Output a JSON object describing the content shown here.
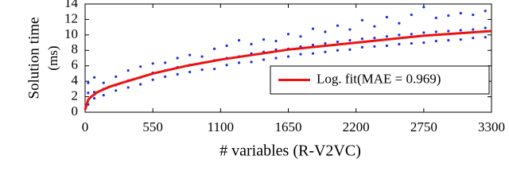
{
  "chart_data": {
    "type": "scatter",
    "xlabel": "# variables (R-V2VC)",
    "ylabel": [
      "Solution time",
      "(ms)"
    ],
    "xlim": [
      0,
      3300
    ],
    "xticks": [
      0,
      550,
      1100,
      1650,
      2200,
      2750,
      3300
    ],
    "ylim": [
      0,
      14
    ],
    "yticks": [
      0,
      2,
      4,
      6,
      8,
      10,
      12,
      14
    ],
    "grid": false,
    "legend": "lower right",
    "series": [
      {
        "type": "scatter",
        "color": "#1f2fe0",
        "x": [
          25,
          25,
          25,
          75,
          75,
          75,
          150,
          150,
          150,
          250,
          250,
          250,
          350,
          350,
          350,
          450,
          450,
          450,
          550,
          550,
          550,
          650,
          650,
          650,
          750,
          750,
          750,
          850,
          850,
          850,
          950,
          950,
          950,
          1050,
          1050,
          1050,
          1150,
          1150,
          1150,
          1250,
          1250,
          1250,
          1350,
          1350,
          1350,
          1450,
          1450,
          1450,
          1550,
          1550,
          1550,
          1650,
          1650,
          1650,
          1750,
          1750,
          1750,
          1850,
          1850,
          1850,
          1950,
          1950,
          1950,
          2050,
          2050,
          2050,
          2150,
          2150,
          2150,
          2250,
          2250,
          2250,
          2350,
          2350,
          2350,
          2450,
          2450,
          2450,
          2550,
          2550,
          2550,
          2650,
          2650,
          2650,
          2750,
          2750,
          2750,
          2850,
          2850,
          2850,
          2950,
          2950,
          2950,
          3050,
          3050,
          3050,
          3150,
          3150,
          3150,
          3250,
          3250,
          3250
        ],
        "values": [
          1.0,
          2.5,
          3.8,
          1.8,
          2.6,
          4.5,
          2.2,
          3.0,
          3.8,
          2.8,
          3.5,
          4.6,
          3.2,
          4.1,
          5.4,
          3.6,
          4.5,
          5.9,
          4.2,
          5.1,
          6.3,
          4.6,
          5.4,
          6.4,
          4.9,
          5.8,
          7.0,
          5.2,
          6.1,
          7.4,
          5.5,
          6.4,
          7.2,
          5.6,
          6.7,
          8.2,
          6.1,
          7.0,
          8.6,
          6.4,
          7.2,
          9.3,
          6.5,
          7.6,
          8.8,
          6.8,
          7.8,
          9.4,
          7.0,
          8.1,
          9.2,
          7.2,
          8.2,
          10.1,
          7.5,
          8.5,
          9.8,
          7.6,
          8.7,
          10.8,
          7.8,
          8.9,
          10.4,
          8.0,
          9.1,
          11.2,
          8.1,
          9.3,
          10.7,
          8.4,
          9.5,
          11.9,
          8.5,
          9.6,
          11.1,
          8.6,
          9.8,
          12.3,
          8.8,
          10.0,
          11.5,
          8.9,
          10.1,
          12.6,
          9.0,
          10.3,
          13.6,
          9.2,
          10.4,
          12.2,
          9.3,
          10.5,
          12.5,
          9.4,
          10.6,
          12.8,
          9.6,
          10.7,
          12.6,
          9.7,
          10.9,
          13.1
        ]
      },
      {
        "type": "line",
        "name": "Log. fit(MAE = 0.969)",
        "color": "#ee1111",
        "x": [
          0,
          25,
          50,
          100,
          200,
          300,
          550,
          825,
          1100,
          1650,
          2200,
          2750,
          3300
        ],
        "values": [
          0.3,
          1.6,
          2.0,
          2.6,
          3.3,
          3.8,
          5.0,
          6.0,
          6.8,
          8.1,
          9.0,
          9.9,
          10.5
        ]
      }
    ]
  }
}
